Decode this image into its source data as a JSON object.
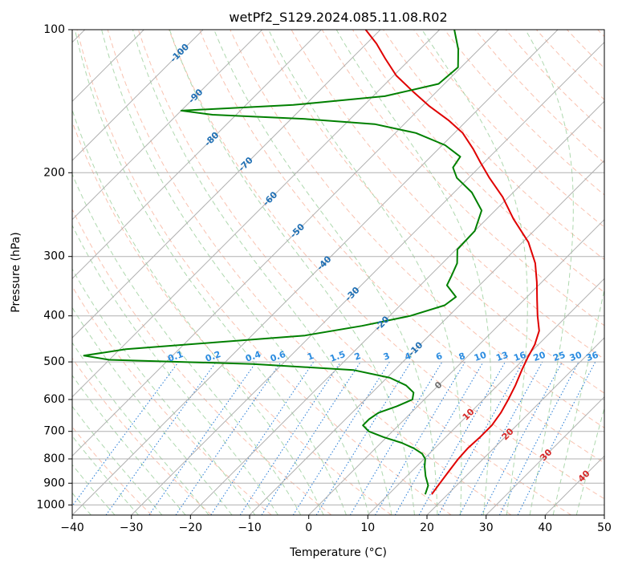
{
  "chart_data": {
    "type": "skew-t",
    "title": "wetPf2_S129.2024.085.11.08.R02",
    "xlabel": "Temperature (°C)",
    "ylabel": "Pressure (hPa)",
    "xlim": [
      -40,
      50
    ],
    "ylim": [
      1050,
      100
    ],
    "y_scale": "log",
    "grid": true,
    "x_ticks": [
      -40,
      -30,
      -20,
      -10,
      0,
      10,
      20,
      30,
      40,
      50
    ],
    "y_ticks": [
      100,
      200,
      300,
      400,
      500,
      600,
      700,
      800,
      900,
      1000
    ],
    "x_tick_labels": [
      "−40",
      "−30",
      "−20",
      "−10",
      "0",
      "10",
      "20",
      "30",
      "40",
      "50"
    ],
    "y_tick_labels": [
      "100",
      "200",
      "300",
      "400",
      "500",
      "600",
      "700",
      "800",
      "900",
      "1000"
    ],
    "isotherm_labels": [
      {
        "text": "-100",
        "p": 112,
        "T": -100
      },
      {
        "text": "-90",
        "p": 138,
        "T": -90
      },
      {
        "text": "-80",
        "p": 170,
        "T": -80
      },
      {
        "text": "-70",
        "p": 192,
        "T": -70
      },
      {
        "text": "-60",
        "p": 227,
        "T": -60
      },
      {
        "text": "-50",
        "p": 265,
        "T": -50
      },
      {
        "text": "-40",
        "p": 310,
        "T": -40
      },
      {
        "text": "-30",
        "p": 360,
        "T": -30
      },
      {
        "text": "-20",
        "p": 415,
        "T": -20
      },
      {
        "text": "-10",
        "p": 470,
        "T": -10
      }
    ],
    "mixing_ratio_labels": [
      "0.1",
      "0.2",
      "0.4",
      "0.6",
      "1",
      "1.5",
      "2",
      "3",
      "4",
      "6",
      "8",
      "10",
      "13",
      "16",
      "20",
      "25",
      "30",
      "36"
    ],
    "mixing_ratio_values": [
      0.1,
      0.2,
      0.4,
      0.6,
      1,
      1.5,
      2,
      3,
      4,
      6,
      8,
      10,
      13,
      16,
      20,
      25,
      30,
      36
    ],
    "moist_adiabat_labels": [
      {
        "text": "0",
        "p": 560,
        "T": 0
      },
      {
        "text": "10",
        "p": 645,
        "T": 10
      },
      {
        "text": "20",
        "p": 710,
        "T": 20
      },
      {
        "text": "30",
        "p": 785,
        "T": 30
      },
      {
        "text": "40",
        "p": 870,
        "T": 40
      }
    ],
    "series": [
      {
        "kind": "temperature",
        "color": "#e00000",
        "points": [
          {
            "p": 950,
            "T": 17.3
          },
          {
            "p": 900,
            "T": 16.8
          },
          {
            "p": 850,
            "T": 16.3
          },
          {
            "p": 800,
            "T": 15.8
          },
          {
            "p": 760,
            "T": 15.6
          },
          {
            "p": 720,
            "T": 15.8
          },
          {
            "p": 680,
            "T": 15.8
          },
          {
            "p": 640,
            "T": 15.2
          },
          {
            "p": 600,
            "T": 14.2
          },
          {
            "p": 560,
            "T": 13.0
          },
          {
            "p": 520,
            "T": 11.5
          },
          {
            "p": 490,
            "T": 10.4
          },
          {
            "p": 460,
            "T": 9.4
          },
          {
            "p": 430,
            "T": 7.8
          },
          {
            "p": 400,
            "T": 5.0
          },
          {
            "p": 370,
            "T": 2.2
          },
          {
            "p": 340,
            "T": -0.8
          },
          {
            "p": 310,
            "T": -4.3
          },
          {
            "p": 280,
            "T": -9.0
          },
          {
            "p": 250,
            "T": -15.5
          },
          {
            "p": 225,
            "T": -21.0
          },
          {
            "p": 205,
            "T": -26.5
          },
          {
            "p": 190,
            "T": -30.7
          },
          {
            "p": 178,
            "T": -34.2
          },
          {
            "p": 165,
            "T": -38.6
          },
          {
            "p": 155,
            "T": -43.2
          },
          {
            "p": 145,
            "T": -48.7
          },
          {
            "p": 135,
            "T": -54.0
          },
          {
            "p": 125,
            "T": -59.5
          },
          {
            "p": 115,
            "T": -64.3
          },
          {
            "p": 107,
            "T": -68.3
          },
          {
            "p": 100,
            "T": -72.5
          }
        ]
      },
      {
        "kind": "dewpoint",
        "color": "#008000",
        "points": [
          {
            "p": 950,
            "T": 16.2
          },
          {
            "p": 910,
            "T": 15.2
          },
          {
            "p": 870,
            "T": 13.2
          },
          {
            "p": 830,
            "T": 11.4
          },
          {
            "p": 800,
            "T": 10.2
          },
          {
            "p": 780,
            "T": 8.8
          },
          {
            "p": 760,
            "T": 6.5
          },
          {
            "p": 740,
            "T": 3.5
          },
          {
            "p": 720,
            "T": -0.5
          },
          {
            "p": 700,
            "T": -4.0
          },
          {
            "p": 680,
            "T": -6.0
          },
          {
            "p": 660,
            "T": -6.0
          },
          {
            "p": 640,
            "T": -5.5
          },
          {
            "p": 620,
            "T": -3.5
          },
          {
            "p": 600,
            "T": -2.0
          },
          {
            "p": 580,
            "T": -3.0
          },
          {
            "p": 560,
            "T": -5.5
          },
          {
            "p": 540,
            "T": -9.5
          },
          {
            "p": 520,
            "T": -17.0
          },
          {
            "p": 505,
            "T": -35.0
          },
          {
            "p": 495,
            "T": -60.0
          },
          {
            "p": 485,
            "T": -65.0
          },
          {
            "p": 470,
            "T": -59.0
          },
          {
            "p": 455,
            "T": -45.0
          },
          {
            "p": 440,
            "T": -31.0
          },
          {
            "p": 420,
            "T": -23.0
          },
          {
            "p": 400,
            "T": -16.5
          },
          {
            "p": 380,
            "T": -12.5
          },
          {
            "p": 365,
            "T": -12.0
          },
          {
            "p": 345,
            "T": -15.5
          },
          {
            "p": 330,
            "T": -16.3
          },
          {
            "p": 310,
            "T": -17.5
          },
          {
            "p": 290,
            "T": -19.8
          },
          {
            "p": 265,
            "T": -20.0
          },
          {
            "p": 240,
            "T": -22.3
          },
          {
            "p": 220,
            "T": -27.0
          },
          {
            "p": 205,
            "T": -32.0
          },
          {
            "p": 195,
            "T": -34.4
          },
          {
            "p": 185,
            "T": -35.0
          },
          {
            "p": 175,
            "T": -39.5
          },
          {
            "p": 165,
            "T": -46.5
          },
          {
            "p": 158,
            "T": -55.0
          },
          {
            "p": 154,
            "T": -68.0
          },
          {
            "p": 151,
            "T": -84.0
          },
          {
            "p": 148,
            "T": -90.0
          },
          {
            "p": 144,
            "T": -72.0
          },
          {
            "p": 138,
            "T": -58.0
          },
          {
            "p": 130,
            "T": -51.0
          },
          {
            "p": 120,
            "T": -50.5
          },
          {
            "p": 110,
            "T": -53.5
          },
          {
            "p": 100,
            "T": -57.5
          }
        ]
      }
    ]
  }
}
